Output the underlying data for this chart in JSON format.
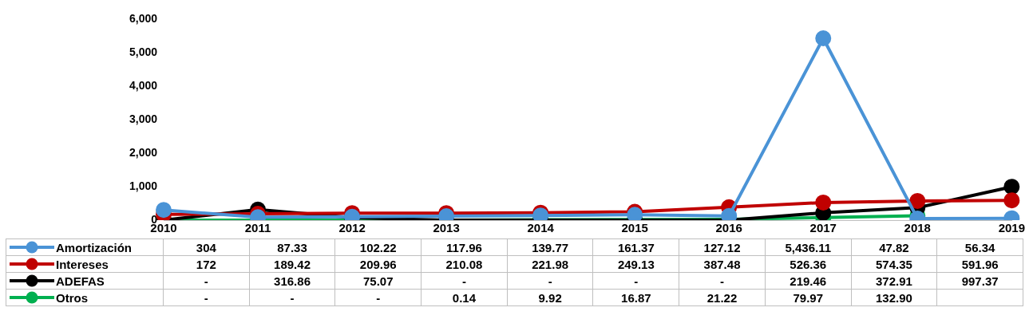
{
  "chart_data": {
    "type": "line",
    "categories": [
      "2010",
      "2011",
      "2012",
      "2013",
      "2014",
      "2015",
      "2016",
      "2017",
      "2018",
      "2019"
    ],
    "series": [
      {
        "name": "Amortización",
        "color": "#4a93d6",
        "values": [
          304,
          87.33,
          102.22,
          117.96,
          139.77,
          161.37,
          127.12,
          5436.11,
          47.82,
          56.34
        ],
        "value_labels": [
          "304",
          "87.33",
          "102.22",
          "117.96",
          "139.77",
          "161.37",
          "127.12",
          "5,436.11",
          "47.82",
          "56.34"
        ]
      },
      {
        "name": "Intereses",
        "color": "#c00000",
        "values": [
          172,
          189.42,
          209.96,
          210.08,
          221.98,
          249.13,
          387.48,
          526.36,
          574.35,
          591.96
        ],
        "value_labels": [
          "172",
          "189.42",
          "209.96",
          "210.08",
          "221.98",
          "249.13",
          "387.48",
          "526.36",
          "574.35",
          "591.96"
        ]
      },
      {
        "name": "ADEFAS",
        "color": "#000000",
        "values": [
          0,
          316.86,
          75.07,
          0,
          0,
          0,
          0,
          219.46,
          372.91,
          997.37
        ],
        "value_labels": [
          "-",
          "316.86",
          "75.07",
          "-",
          "-",
          "-",
          "-",
          "219.46",
          "372.91",
          "997.37"
        ]
      },
      {
        "name": "Otros",
        "color": "#00b050",
        "values": [
          0,
          0,
          0,
          0.14,
          9.92,
          16.87,
          21.22,
          79.97,
          132.9,
          null
        ],
        "value_labels": [
          "-",
          "-",
          "-",
          "0.14",
          "9.92",
          "16.87",
          "21.22",
          "79.97",
          "132.90",
          null
        ]
      }
    ],
    "ylim": [
      0,
      6000
    ],
    "yticks": [
      {
        "value": 0,
        "label": "0"
      },
      {
        "value": 1000,
        "label": "1,000"
      },
      {
        "value": 2000,
        "label": "2,000"
      },
      {
        "value": 3000,
        "label": "3,000"
      },
      {
        "value": 4000,
        "label": "4,000"
      },
      {
        "value": 5000,
        "label": "5,000"
      },
      {
        "value": 6000,
        "label": "6,000"
      }
    ],
    "grid": false,
    "legend": "bottom",
    "marker": "circle",
    "line_style": "solid"
  }
}
